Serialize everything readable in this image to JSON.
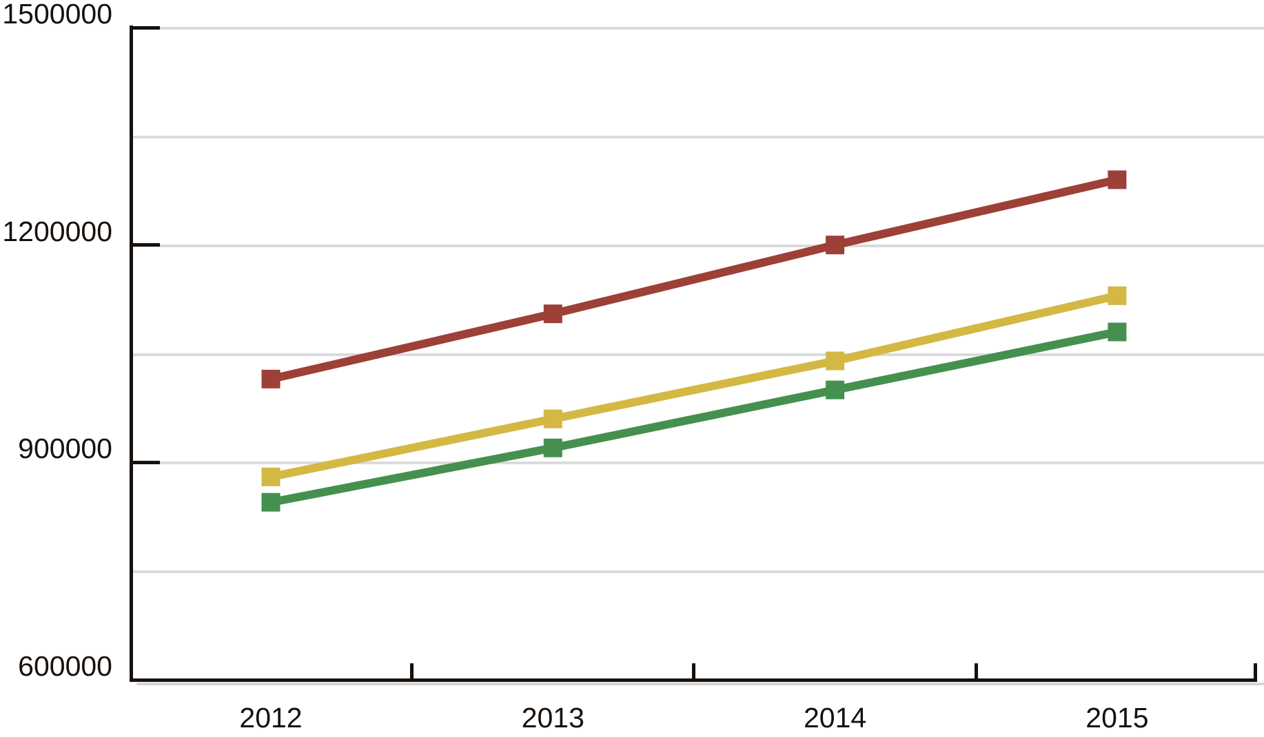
{
  "chart_data": {
    "type": "line",
    "title": "",
    "xlabel": "",
    "ylabel": "",
    "categories": [
      "2012",
      "2013",
      "2014",
      "2015"
    ],
    "series": [
      {
        "name": "maroon",
        "color": "#9D4038",
        "values": [
          1015000,
          1105000,
          1200000,
          1290000
        ]
      },
      {
        "name": "gold",
        "color": "#D3B844",
        "values": [
          880000,
          960000,
          1040000,
          1130000
        ]
      },
      {
        "name": "green",
        "color": "#45904F",
        "values": [
          845000,
          920000,
          1000000,
          1080000
        ]
      }
    ],
    "ylim": [
      600000,
      1500000
    ],
    "y_tick_interval": 300000,
    "y_gridline_interval": 150000,
    "y_tick_labels": [
      "600000",
      "900000",
      "1200000",
      "1500000"
    ],
    "x_tick_labels": [
      "2012",
      "2013",
      "2014",
      "2015"
    ],
    "legend": "none",
    "grid": "horizontal",
    "marker_style": "square",
    "colors": {
      "background": "#FFFFFF",
      "gridline": "#DBDBDB",
      "axis": "#17100B",
      "text": "#17100B",
      "axis_shadow": "#D6D6D6"
    }
  }
}
